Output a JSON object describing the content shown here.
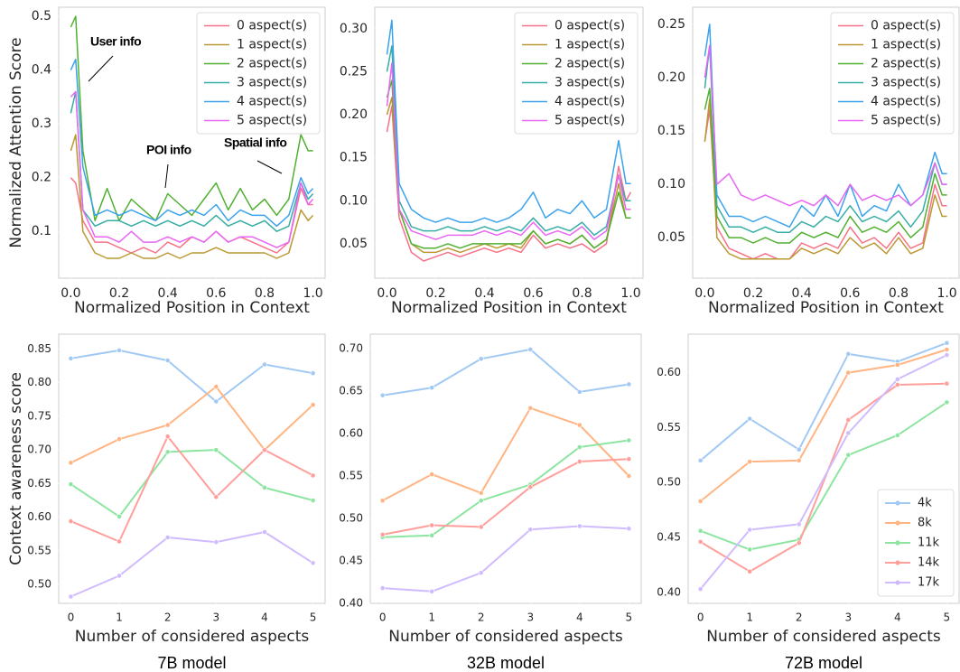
{
  "chart_data": [
    {
      "type": "line",
      "ylabel": "Normalized Attention Score",
      "xlabel": "Normalized Position in Context",
      "x": [
        0,
        0.02,
        0.05,
        0.1,
        0.15,
        0.2,
        0.25,
        0.3,
        0.35,
        0.4,
        0.45,
        0.5,
        0.55,
        0.6,
        0.65,
        0.7,
        0.75,
        0.8,
        0.85,
        0.9,
        0.95,
        0.98,
        1.0
      ],
      "xlim": [
        -0.05,
        1.05
      ],
      "xticks": [
        {
          "value": 0,
          "label": "0.0"
        },
        0.2,
        0.4,
        0.6,
        0.8,
        {
          "value": 1,
          "label": "1.0"
        }
      ],
      "ylim": [
        0.013,
        0.517
      ],
      "yticks": [
        0.1,
        0.2,
        0.3,
        0.4,
        0.5
      ],
      "legend": "upper right",
      "annotations": [
        "User info",
        "POI info",
        "Spatial info"
      ],
      "series": [
        {
          "name": "0 aspect(s)",
          "color": "#f77189",
          "values": [
            0.2,
            0.19,
            0.12,
            0.08,
            0.08,
            0.07,
            0.06,
            0.07,
            0.06,
            0.08,
            0.07,
            0.09,
            0.08,
            0.1,
            0.08,
            0.09,
            0.08,
            0.07,
            0.06,
            0.08,
            0.18,
            0.15,
            0.15
          ]
        },
        {
          "name": "1 aspect(s)",
          "color": "#bb9832",
          "values": [
            0.25,
            0.28,
            0.1,
            0.06,
            0.05,
            0.05,
            0.06,
            0.05,
            0.05,
            0.06,
            0.05,
            0.06,
            0.06,
            0.07,
            0.06,
            0.06,
            0.06,
            0.06,
            0.05,
            0.06,
            0.14,
            0.12,
            0.13
          ]
        },
        {
          "name": "2 aspect(s)",
          "color": "#50b131",
          "values": [
            0.48,
            0.5,
            0.25,
            0.12,
            0.18,
            0.12,
            0.16,
            0.14,
            0.12,
            0.17,
            0.15,
            0.13,
            0.16,
            0.19,
            0.14,
            0.18,
            0.14,
            0.16,
            0.13,
            0.16,
            0.28,
            0.25,
            0.25
          ]
        },
        {
          "name": "3 aspect(s)",
          "color": "#36ada4",
          "values": [
            0.32,
            0.36,
            0.14,
            0.11,
            0.12,
            0.12,
            0.11,
            0.12,
            0.11,
            0.12,
            0.11,
            0.12,
            0.11,
            0.13,
            0.11,
            0.12,
            0.11,
            0.12,
            0.1,
            0.11,
            0.19,
            0.16,
            0.17
          ]
        },
        {
          "name": "4 aspect(s)",
          "color": "#3ba3ec",
          "values": [
            0.4,
            0.42,
            0.22,
            0.13,
            0.14,
            0.13,
            0.14,
            0.13,
            0.12,
            0.14,
            0.13,
            0.14,
            0.13,
            0.15,
            0.12,
            0.14,
            0.13,
            0.13,
            0.11,
            0.13,
            0.2,
            0.17,
            0.18
          ]
        },
        {
          "name": "5 aspect(s)",
          "color": "#e866f4",
          "values": [
            0.35,
            0.36,
            0.14,
            0.09,
            0.09,
            0.08,
            0.1,
            0.08,
            0.08,
            0.09,
            0.08,
            0.09,
            0.08,
            0.1,
            0.08,
            0.09,
            0.09,
            0.08,
            0.07,
            0.08,
            0.19,
            0.15,
            0.16
          ]
        }
      ]
    },
    {
      "type": "line",
      "xlabel": "Normalized Position in Context",
      "x": [
        0,
        0.02,
        0.05,
        0.1,
        0.15,
        0.2,
        0.25,
        0.3,
        0.35,
        0.4,
        0.45,
        0.5,
        0.55,
        0.6,
        0.65,
        0.7,
        0.75,
        0.8,
        0.85,
        0.9,
        0.95,
        0.98,
        1.0
      ],
      "xlim": [
        -0.05,
        1.05
      ],
      "xticks": [
        {
          "value": 0,
          "label": "0.0"
        },
        0.2,
        0.4,
        0.6,
        0.8,
        {
          "value": 1,
          "label": "1.0"
        }
      ],
      "ylim": [
        0.01,
        0.325
      ],
      "yticks": [
        0.05,
        {
          "value": 0.1,
          "label": "0.10"
        },
        0.15,
        {
          "value": 0.2,
          "label": "0.20"
        },
        0.25,
        {
          "value": 0.3,
          "label": "0.30"
        }
      ],
      "legend": "upper right",
      "series": [
        {
          "name": "0 aspect(s)",
          "color": "#f77189",
          "values": [
            0.18,
            0.21,
            0.08,
            0.04,
            0.03,
            0.035,
            0.04,
            0.035,
            0.04,
            0.045,
            0.04,
            0.045,
            0.04,
            0.06,
            0.045,
            0.05,
            0.045,
            0.05,
            0.04,
            0.05,
            0.14,
            0.1,
            0.11
          ]
        },
        {
          "name": "1 aspect(s)",
          "color": "#bb9832",
          "values": [
            0.2,
            0.22,
            0.09,
            0.05,
            0.04,
            0.04,
            0.045,
            0.04,
            0.045,
            0.05,
            0.045,
            0.05,
            0.045,
            0.065,
            0.05,
            0.055,
            0.05,
            0.06,
            0.045,
            0.055,
            0.12,
            0.08,
            0.08
          ]
        },
        {
          "name": "2 aspect(s)",
          "color": "#50b131",
          "values": [
            0.22,
            0.24,
            0.09,
            0.05,
            0.045,
            0.045,
            0.05,
            0.045,
            0.05,
            0.05,
            0.05,
            0.05,
            0.05,
            0.065,
            0.05,
            0.055,
            0.05,
            0.06,
            0.045,
            0.055,
            0.11,
            0.08,
            0.08
          ]
        },
        {
          "name": "3 aspect(s)",
          "color": "#36ada4",
          "values": [
            0.25,
            0.28,
            0.1,
            0.07,
            0.065,
            0.065,
            0.07,
            0.065,
            0.065,
            0.07,
            0.065,
            0.07,
            0.065,
            0.08,
            0.065,
            0.07,
            0.065,
            0.075,
            0.06,
            0.07,
            0.13,
            0.1,
            0.1
          ]
        },
        {
          "name": "4 aspect(s)",
          "color": "#3ba3ec",
          "values": [
            0.27,
            0.31,
            0.12,
            0.09,
            0.08,
            0.075,
            0.08,
            0.075,
            0.075,
            0.08,
            0.075,
            0.08,
            0.09,
            0.11,
            0.08,
            0.09,
            0.085,
            0.1,
            0.08,
            0.09,
            0.17,
            0.12,
            0.12
          ]
        },
        {
          "name": "5 aspect(s)",
          "color": "#e866f4",
          "values": [
            0.21,
            0.26,
            0.09,
            0.065,
            0.06,
            0.055,
            0.06,
            0.06,
            0.06,
            0.065,
            0.06,
            0.065,
            0.06,
            0.075,
            0.06,
            0.065,
            0.06,
            0.07,
            0.055,
            0.065,
            0.13,
            0.09,
            0.09
          ]
        }
      ]
    },
    {
      "type": "line",
      "xlabel": "Normalized Position in Context",
      "x": [
        0,
        0.02,
        0.05,
        0.1,
        0.15,
        0.2,
        0.25,
        0.3,
        0.35,
        0.4,
        0.45,
        0.5,
        0.55,
        0.6,
        0.65,
        0.7,
        0.75,
        0.8,
        0.85,
        0.9,
        0.95,
        0.98,
        1.0
      ],
      "xlim": [
        -0.05,
        1.05
      ],
      "xticks": [
        {
          "value": 0,
          "label": "0.0"
        },
        0.2,
        0.4,
        0.6,
        0.8,
        {
          "value": 1,
          "label": "1.0"
        }
      ],
      "ylim": [
        0.012,
        0.266
      ],
      "yticks": [
        0.05,
        {
          "value": 0.1,
          "label": "0.10"
        },
        0.15,
        {
          "value": 0.2,
          "label": "0.20"
        },
        0.25
      ],
      "legend": "upper right",
      "series": [
        {
          "name": "0 aspect(s)",
          "color": "#f77189",
          "values": [
            0.14,
            0.17,
            0.06,
            0.04,
            0.035,
            0.03,
            0.035,
            0.03,
            0.03,
            0.045,
            0.04,
            0.045,
            0.04,
            0.06,
            0.045,
            0.05,
            0.04,
            0.055,
            0.04,
            0.045,
            0.1,
            0.08,
            0.08
          ]
        },
        {
          "name": "1 aspect(s)",
          "color": "#bb9832",
          "values": [
            0.14,
            0.18,
            0.05,
            0.035,
            0.03,
            0.03,
            0.03,
            0.03,
            0.03,
            0.04,
            0.035,
            0.04,
            0.035,
            0.05,
            0.04,
            0.045,
            0.035,
            0.05,
            0.035,
            0.04,
            0.09,
            0.07,
            0.07
          ]
        },
        {
          "name": "2 aspect(s)",
          "color": "#50b131",
          "values": [
            0.17,
            0.19,
            0.07,
            0.05,
            0.05,
            0.045,
            0.05,
            0.045,
            0.045,
            0.055,
            0.05,
            0.055,
            0.05,
            0.07,
            0.055,
            0.06,
            0.055,
            0.065,
            0.05,
            0.06,
            0.11,
            0.09,
            0.09
          ]
        },
        {
          "name": "3 aspect(s)",
          "color": "#36ada4",
          "values": [
            0.19,
            0.23,
            0.08,
            0.06,
            0.06,
            0.055,
            0.06,
            0.055,
            0.055,
            0.065,
            0.06,
            0.07,
            0.065,
            0.08,
            0.065,
            0.07,
            0.065,
            0.075,
            0.06,
            0.075,
            0.12,
            0.1,
            0.1
          ]
        },
        {
          "name": "4 aspect(s)",
          "color": "#3ba3ec",
          "values": [
            0.22,
            0.25,
            0.09,
            0.07,
            0.07,
            0.065,
            0.07,
            0.065,
            0.06,
            0.08,
            0.07,
            0.09,
            0.07,
            0.1,
            0.07,
            0.08,
            0.075,
            0.1,
            0.08,
            0.09,
            0.13,
            0.11,
            0.11
          ]
        },
        {
          "name": "5 aspect(s)",
          "color": "#e866f4",
          "values": [
            0.2,
            0.23,
            0.1,
            0.11,
            0.09,
            0.085,
            0.09,
            0.085,
            0.08,
            0.085,
            0.08,
            0.09,
            0.08,
            0.1,
            0.085,
            0.09,
            0.085,
            0.09,
            0.08,
            0.09,
            0.12,
            0.1,
            0.1
          ]
        }
      ]
    },
    {
      "type": "line",
      "markers": true,
      "ylabel": "Context awareness score",
      "xlabel": "Number of considered aspects",
      "caption": "7B model",
      "x": [
        0,
        1,
        2,
        3,
        4,
        5
      ],
      "xlim": [
        -0.25,
        5.25
      ],
      "xticks": [
        0,
        1,
        2,
        3,
        4,
        5
      ],
      "ylim": [
        0.472,
        0.872
      ],
      "yticks": [
        {
          "value": 0.5,
          "label": "0.50"
        },
        0.55,
        {
          "value": 0.6,
          "label": "0.60"
        },
        0.65,
        {
          "value": 0.7,
          "label": "0.70"
        },
        0.75,
        {
          "value": 0.8,
          "label": "0.80"
        },
        0.85
      ],
      "series": [
        {
          "name": "4k",
          "color": "#a1c9f4",
          "values": [
            0.836,
            0.848,
            0.833,
            0.772,
            0.827,
            0.814
          ]
        },
        {
          "name": "8k",
          "color": "#ffb482",
          "values": [
            0.681,
            0.716,
            0.737,
            0.794,
            0.7,
            0.767
          ]
        },
        {
          "name": "11k",
          "color": "#8de5a1",
          "values": [
            0.649,
            0.601,
            0.697,
            0.7,
            0.644,
            0.625
          ]
        },
        {
          "name": "14k",
          "color": "#ff9f9b",
          "values": [
            0.594,
            0.564,
            0.72,
            0.63,
            0.7,
            0.662
          ]
        },
        {
          "name": "17k",
          "color": "#d0bbff",
          "values": [
            0.482,
            0.513,
            0.57,
            0.563,
            0.578,
            0.532
          ]
        }
      ]
    },
    {
      "type": "line",
      "markers": true,
      "xlabel": "Number of considered aspects",
      "caption": "32B model",
      "x": [
        0,
        1,
        2,
        3,
        4,
        5
      ],
      "xlim": [
        -0.25,
        5.25
      ],
      "xticks": [
        0,
        1,
        2,
        3,
        4,
        5
      ],
      "ylim": [
        0.4,
        0.717
      ],
      "yticks": [
        {
          "value": 0.4,
          "label": "0.40"
        },
        0.45,
        {
          "value": 0.5,
          "label": "0.50"
        },
        0.55,
        {
          "value": 0.6,
          "label": "0.60"
        },
        0.65,
        {
          "value": 0.7,
          "label": "0.70"
        }
      ],
      "series": [
        {
          "name": "4k",
          "color": "#a1c9f4",
          "values": [
            0.645,
            0.654,
            0.688,
            0.699,
            0.649,
            0.658
          ]
        },
        {
          "name": "8k",
          "color": "#ffb482",
          "values": [
            0.521,
            0.552,
            0.53,
            0.63,
            0.61,
            0.55
          ]
        },
        {
          "name": "11k",
          "color": "#8de5a1",
          "values": [
            0.478,
            0.48,
            0.521,
            0.54,
            0.584,
            0.592
          ]
        },
        {
          "name": "14k",
          "color": "#ff9f9b",
          "values": [
            0.481,
            0.492,
            0.49,
            0.537,
            0.567,
            0.57
          ]
        },
        {
          "name": "17k",
          "color": "#d0bbff",
          "values": [
            0.418,
            0.414,
            0.436,
            0.487,
            0.491,
            0.488
          ]
        }
      ]
    },
    {
      "type": "line",
      "markers": true,
      "xlabel": "Number of considered aspects",
      "caption": "72B model",
      "x": [
        0,
        1,
        2,
        3,
        4,
        5
      ],
      "xlim": [
        -0.25,
        5.25
      ],
      "xticks": [
        0,
        1,
        2,
        3,
        4,
        5
      ],
      "ylim": [
        0.39,
        0.635
      ],
      "yticks": [
        {
          "value": 0.4,
          "label": "0.40"
        },
        0.45,
        {
          "value": 0.5,
          "label": "0.50"
        },
        0.55,
        {
          "value": 0.6,
          "label": "0.60"
        }
      ],
      "legend": "lower right",
      "series": [
        {
          "name": "4k",
          "color": "#a1c9f4",
          "values": [
            0.52,
            0.558,
            0.53,
            0.617,
            0.61,
            0.627
          ]
        },
        {
          "name": "8k",
          "color": "#ffb482",
          "values": [
            0.483,
            0.519,
            0.52,
            0.6,
            0.607,
            0.621
          ]
        },
        {
          "name": "11k",
          "color": "#8de5a1",
          "values": [
            0.456,
            0.439,
            0.448,
            0.525,
            0.543,
            0.573
          ]
        },
        {
          "name": "14k",
          "color": "#ff9f9b",
          "values": [
            0.446,
            0.419,
            0.445,
            0.557,
            0.589,
            0.59
          ]
        },
        {
          "name": "17k",
          "color": "#d0bbff",
          "values": [
            0.403,
            0.457,
            0.462,
            0.545,
            0.594,
            0.616
          ]
        }
      ]
    }
  ]
}
